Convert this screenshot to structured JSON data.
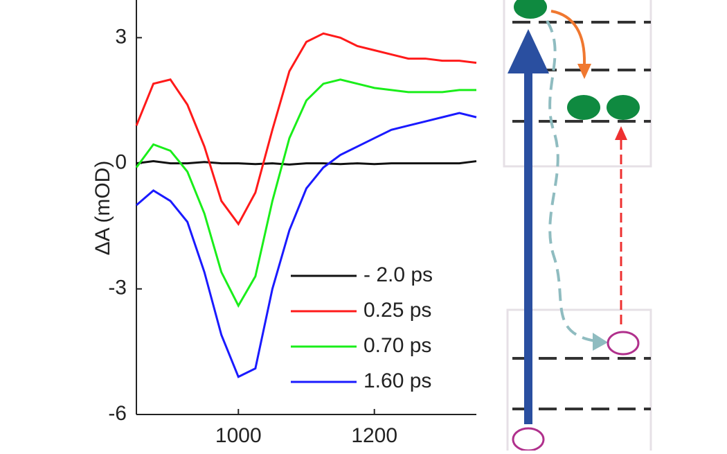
{
  "chart_data": {
    "type": "line",
    "y_label": "ΔA (mOD)",
    "x": [
      850,
      875,
      900,
      925,
      950,
      975,
      1000,
      1025,
      1050,
      1075,
      1100,
      1125,
      1150,
      1175,
      1200,
      1225,
      1250,
      1275,
      1300,
      1325,
      1350
    ],
    "series": [
      {
        "name": "- 2.0 ps",
        "color": "#111111",
        "values": [
          0,
          0.05,
          0,
          0,
          0.03,
          0,
          0,
          -0.02,
          0,
          -0.03,
          0,
          0,
          -0.02,
          0,
          -0.02,
          0,
          0,
          0,
          0,
          0,
          0.05
        ]
      },
      {
        "name": "0.25 ps",
        "color": "#ff1a1a",
        "values": [
          0.9,
          1.9,
          2.0,
          1.4,
          0.4,
          -0.9,
          -1.45,
          -0.7,
          0.8,
          2.2,
          2.9,
          3.1,
          3.0,
          2.8,
          2.7,
          2.6,
          2.5,
          2.5,
          2.45,
          2.45,
          2.4
        ]
      },
      {
        "name": "0.70 ps",
        "color": "#1aee1a",
        "values": [
          -0.1,
          0.45,
          0.3,
          -0.2,
          -1.2,
          -2.6,
          -3.4,
          -2.7,
          -0.9,
          0.6,
          1.5,
          1.9,
          2.0,
          1.9,
          1.8,
          1.75,
          1.7,
          1.7,
          1.7,
          1.75,
          1.75
        ]
      },
      {
        "name": "1.60 ps",
        "color": "#1a1aff",
        "values": [
          -1.0,
          -0.65,
          -0.9,
          -1.4,
          -2.6,
          -4.1,
          -5.1,
          -4.9,
          -3.0,
          -1.6,
          -0.6,
          -0.1,
          0.2,
          0.4,
          0.6,
          0.8,
          0.9,
          1.0,
          1.1,
          1.2,
          1.1
        ]
      }
    ],
    "xlim": [
      850,
      1350
    ],
    "xticks": [
      1000,
      1200
    ],
    "ylim": [
      -6,
      3.9
    ],
    "yticks": [
      -6,
      -3,
      0,
      3
    ]
  }
}
